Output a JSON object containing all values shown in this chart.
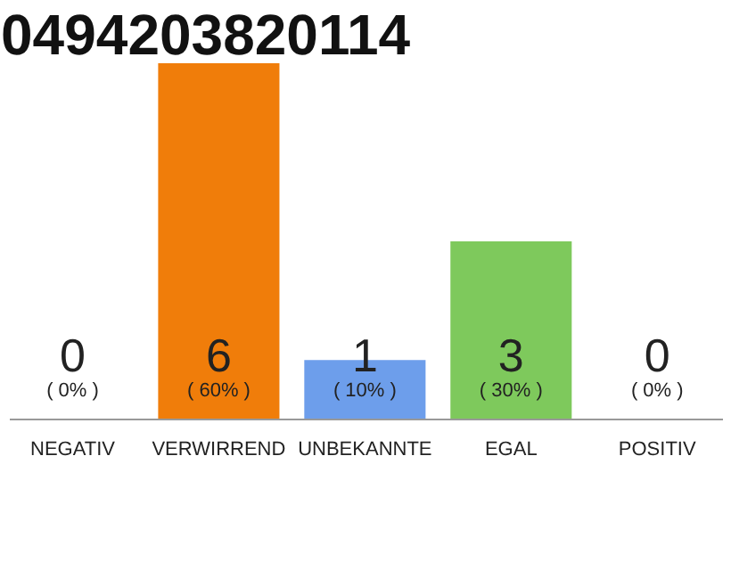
{
  "chart_data": {
    "type": "bar",
    "title": "0494203820114",
    "categories": [
      "NEGATIV",
      "VERWIRREND",
      "UNBEKANNTE",
      "EGAL",
      "POSITIV"
    ],
    "values": [
      0,
      6,
      1,
      3,
      0
    ],
    "colors": [
      "#9e9e9e",
      "#f07d0a",
      "#6d9eeb",
      "#7ec95c",
      "#9e9e9e"
    ],
    "data_labels": true,
    "annotations": [
      "( 0% )",
      "( 60% )",
      "( 10% )",
      "( 30% )",
      "( 0% )"
    ]
  }
}
